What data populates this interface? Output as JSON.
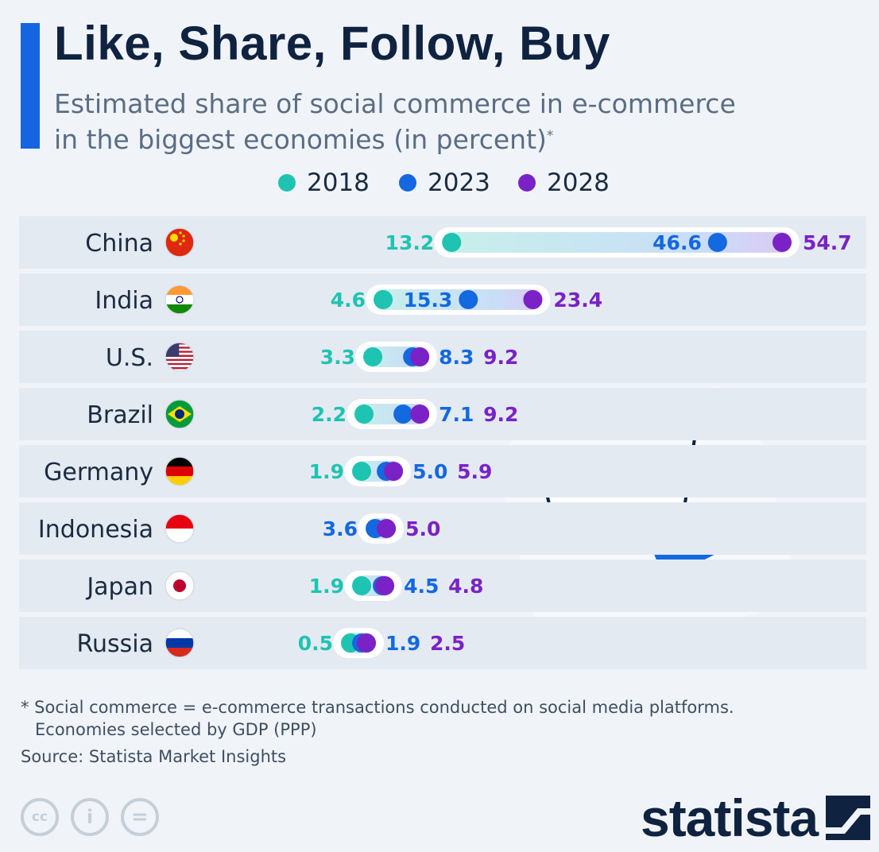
{
  "title": "Like, Share, Follow, Buy",
  "subtitle_line1": "Estimated share of social commerce in e-commerce",
  "subtitle_line2": "in the biggest economies (in percent)",
  "subtitle_mark": "*",
  "footnote_line1": "* Social commerce = e-commerce transactions conducted on social media platforms.",
  "footnote_line2": "Economies selected by GDP (PPP)",
  "source": "Source: Statista Market Insights",
  "logo": "statista",
  "license_icons": [
    "cc-icon",
    "attribution-icon",
    "no-derivatives-icon"
  ],
  "license_labels": [
    "cc",
    "i",
    "="
  ],
  "decoration": "shopping-cart-with-cursor-icon",
  "colors": {
    "series_2018": "#1ec4b1",
    "series_2023": "#1468e0",
    "series_2028": "#7a22c6",
    "title": "#0f2340",
    "accent": "#1565e0"
  },
  "chart_data": {
    "type": "dumbbell",
    "series_names": [
      "2018",
      "2023",
      "2028"
    ],
    "categories": [
      "China",
      "India",
      "U.S.",
      "Brazil",
      "Germany",
      "Indonesia",
      "Japan",
      "Russia"
    ],
    "flag_icons": [
      "china-flag-icon",
      "india-flag-icon",
      "us-flag-icon",
      "brazil-flag-icon",
      "germany-flag-icon",
      "indonesia-flag-icon",
      "japan-flag-icon",
      "russia-flag-icon"
    ],
    "series": [
      {
        "name": "2018",
        "values": [
          13.2,
          4.6,
          3.3,
          2.2,
          1.9,
          null,
          1.9,
          0.5
        ]
      },
      {
        "name": "2023",
        "values": [
          46.6,
          15.3,
          8.3,
          7.1,
          5.0,
          3.6,
          4.5,
          1.9
        ]
      },
      {
        "name": "2028",
        "values": [
          54.7,
          23.4,
          9.2,
          9.2,
          5.9,
          5.0,
          4.8,
          2.5
        ]
      }
    ],
    "labels": [
      [
        "13.2",
        "46.6",
        "54.7"
      ],
      [
        "4.6",
        "15.3",
        "23.4"
      ],
      [
        "3.3",
        "8.3",
        "9.2"
      ],
      [
        "2.2",
        "7.1",
        "9.2"
      ],
      [
        "1.9",
        "5.0",
        "5.9"
      ],
      [
        "",
        "3.6",
        "5.0"
      ],
      [
        "1.9",
        "4.5",
        "4.8"
      ],
      [
        "0.5",
        "1.9",
        "2.5"
      ]
    ],
    "legend_placement": "top-center",
    "grid": false
  }
}
